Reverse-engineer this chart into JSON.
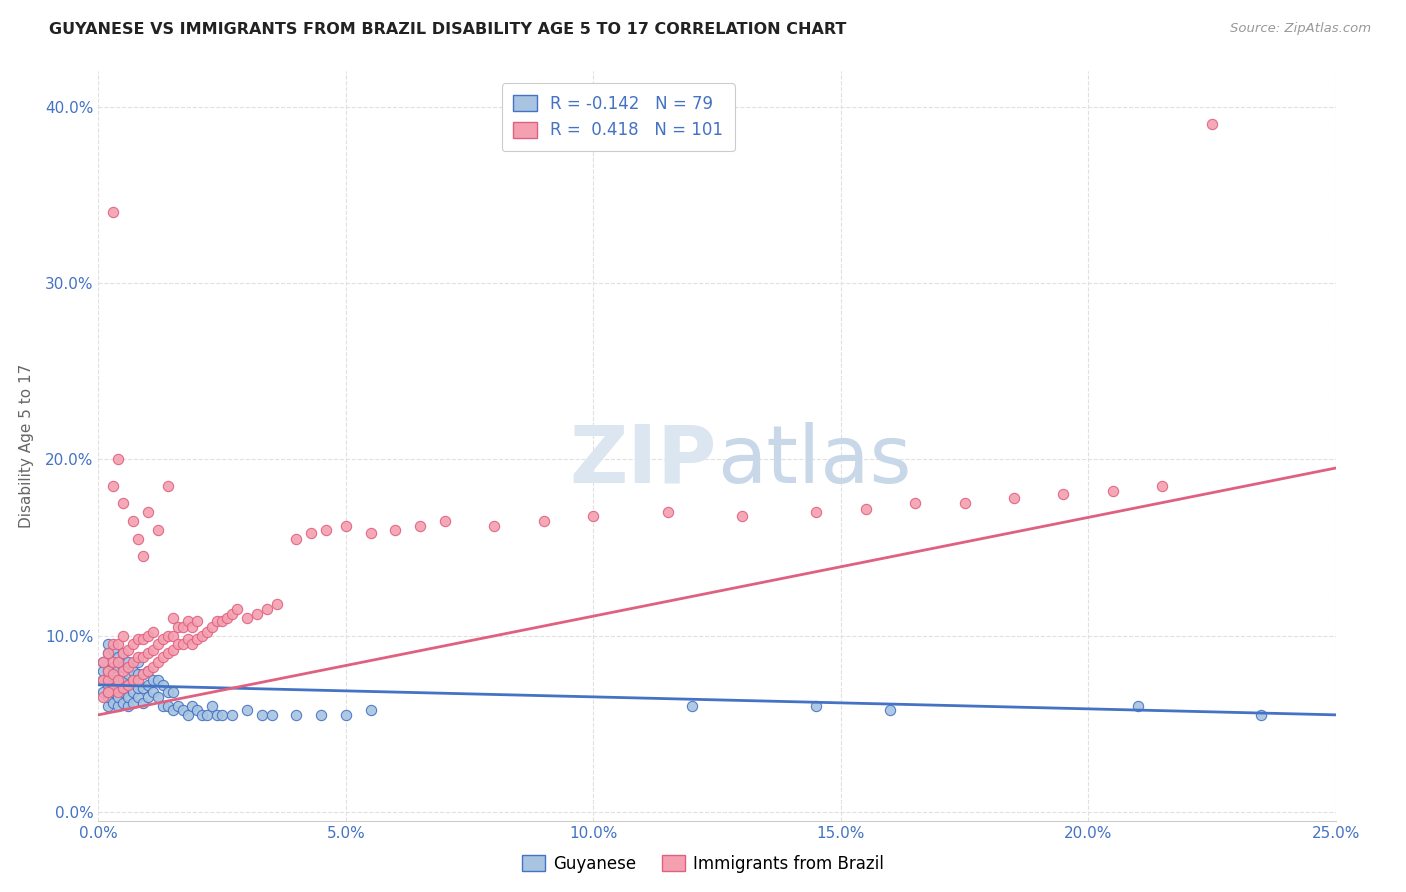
{
  "title": "GUYANESE VS IMMIGRANTS FROM BRAZIL DISABILITY AGE 5 TO 17 CORRELATION CHART",
  "source": "Source: ZipAtlas.com",
  "xlabel": "",
  "ylabel": "Disability Age 5 to 17",
  "xlim": [
    0.0,
    0.25
  ],
  "ylim": [
    -0.005,
    0.42
  ],
  "xticks": [
    0.0,
    0.05,
    0.1,
    0.15,
    0.2,
    0.25
  ],
  "yticks": [
    0.0,
    0.1,
    0.2,
    0.3,
    0.4
  ],
  "xtick_labels": [
    "0.0%",
    "5.0%",
    "10.0%",
    "15.0%",
    "20.0%",
    "25.0%"
  ],
  "ytick_labels": [
    "0.0%",
    "10.0%",
    "20.0%",
    "30.0%",
    "40.0%"
  ],
  "series1_label": "Guyanese",
  "series2_label": "Immigrants from Brazil",
  "R1": -0.142,
  "N1": 79,
  "R2": 0.418,
  "N2": 101,
  "color1": "#a8c4e0",
  "color2": "#f4a0b0",
  "line_color1": "#4472c4",
  "line_color2": "#e06080",
  "watermark_color": "#dce6f0",
  "background_color": "#ffffff",
  "grid_color": "#e0e0e0",
  "title_color": "#222222",
  "axis_color": "#4472c4",
  "legend_text_color": "#4472c4",
  "line1_x0": 0.0,
  "line1_y0": 0.072,
  "line1_x1": 0.25,
  "line1_y1": 0.055,
  "line2_x0": 0.0,
  "line2_y0": 0.055,
  "line2_x1": 0.25,
  "line2_y1": 0.195,
  "guyanese_x": [
    0.001,
    0.001,
    0.001,
    0.001,
    0.002,
    0.002,
    0.002,
    0.002,
    0.002,
    0.002,
    0.003,
    0.003,
    0.003,
    0.003,
    0.003,
    0.003,
    0.004,
    0.004,
    0.004,
    0.004,
    0.004,
    0.004,
    0.005,
    0.005,
    0.005,
    0.005,
    0.005,
    0.006,
    0.006,
    0.006,
    0.006,
    0.006,
    0.007,
    0.007,
    0.007,
    0.007,
    0.008,
    0.008,
    0.008,
    0.008,
    0.009,
    0.009,
    0.009,
    0.01,
    0.01,
    0.01,
    0.011,
    0.011,
    0.012,
    0.012,
    0.013,
    0.013,
    0.014,
    0.014,
    0.015,
    0.015,
    0.016,
    0.017,
    0.018,
    0.019,
    0.02,
    0.021,
    0.022,
    0.023,
    0.024,
    0.025,
    0.027,
    0.03,
    0.033,
    0.035,
    0.04,
    0.045,
    0.05,
    0.055,
    0.12,
    0.145,
    0.16,
    0.21,
    0.235
  ],
  "guyanese_y": [
    0.068,
    0.075,
    0.08,
    0.085,
    0.06,
    0.065,
    0.072,
    0.08,
    0.09,
    0.095,
    0.062,
    0.068,
    0.072,
    0.078,
    0.082,
    0.092,
    0.06,
    0.065,
    0.07,
    0.075,
    0.082,
    0.088,
    0.062,
    0.068,
    0.075,
    0.082,
    0.09,
    0.06,
    0.065,
    0.072,
    0.078,
    0.085,
    0.062,
    0.068,
    0.075,
    0.08,
    0.065,
    0.07,
    0.078,
    0.085,
    0.062,
    0.07,
    0.078,
    0.065,
    0.072,
    0.08,
    0.068,
    0.075,
    0.065,
    0.075,
    0.06,
    0.072,
    0.06,
    0.068,
    0.058,
    0.068,
    0.06,
    0.058,
    0.055,
    0.06,
    0.058,
    0.055,
    0.055,
    0.06,
    0.055,
    0.055,
    0.055,
    0.058,
    0.055,
    0.055,
    0.055,
    0.055,
    0.055,
    0.058,
    0.06,
    0.06,
    0.058,
    0.06,
    0.055
  ],
  "brazil_x": [
    0.001,
    0.001,
    0.001,
    0.002,
    0.002,
    0.002,
    0.002,
    0.003,
    0.003,
    0.003,
    0.003,
    0.004,
    0.004,
    0.004,
    0.004,
    0.005,
    0.005,
    0.005,
    0.005,
    0.006,
    0.006,
    0.006,
    0.007,
    0.007,
    0.007,
    0.008,
    0.008,
    0.008,
    0.009,
    0.009,
    0.009,
    0.01,
    0.01,
    0.01,
    0.011,
    0.011,
    0.011,
    0.012,
    0.012,
    0.013,
    0.013,
    0.014,
    0.014,
    0.015,
    0.015,
    0.015,
    0.016,
    0.016,
    0.017,
    0.017,
    0.018,
    0.018,
    0.019,
    0.019,
    0.02,
    0.02,
    0.021,
    0.022,
    0.023,
    0.024,
    0.025,
    0.026,
    0.027,
    0.028,
    0.03,
    0.032,
    0.034,
    0.036,
    0.04,
    0.043,
    0.046,
    0.05,
    0.055,
    0.06,
    0.065,
    0.07,
    0.08,
    0.09,
    0.1,
    0.115,
    0.13,
    0.145,
    0.155,
    0.165,
    0.175,
    0.185,
    0.195,
    0.205,
    0.215,
    0.225,
    0.003,
    0.005,
    0.007,
    0.008,
    0.009,
    0.01,
    0.012,
    0.014,
    0.003,
    0.004,
    0.002
  ],
  "brazil_y": [
    0.065,
    0.075,
    0.085,
    0.068,
    0.075,
    0.08,
    0.09,
    0.07,
    0.078,
    0.085,
    0.095,
    0.068,
    0.075,
    0.085,
    0.095,
    0.07,
    0.08,
    0.09,
    0.1,
    0.072,
    0.082,
    0.092,
    0.075,
    0.085,
    0.095,
    0.075,
    0.088,
    0.098,
    0.078,
    0.088,
    0.098,
    0.08,
    0.09,
    0.1,
    0.082,
    0.092,
    0.102,
    0.085,
    0.095,
    0.088,
    0.098,
    0.09,
    0.1,
    0.092,
    0.1,
    0.11,
    0.095,
    0.105,
    0.095,
    0.105,
    0.098,
    0.108,
    0.095,
    0.105,
    0.098,
    0.108,
    0.1,
    0.102,
    0.105,
    0.108,
    0.108,
    0.11,
    0.112,
    0.115,
    0.11,
    0.112,
    0.115,
    0.118,
    0.155,
    0.158,
    0.16,
    0.162,
    0.158,
    0.16,
    0.162,
    0.165,
    0.162,
    0.165,
    0.168,
    0.17,
    0.168,
    0.17,
    0.172,
    0.175,
    0.175,
    0.178,
    0.18,
    0.182,
    0.185,
    0.39,
    0.185,
    0.175,
    0.165,
    0.155,
    0.145,
    0.17,
    0.16,
    0.185,
    0.34,
    0.2,
    0.068
  ]
}
